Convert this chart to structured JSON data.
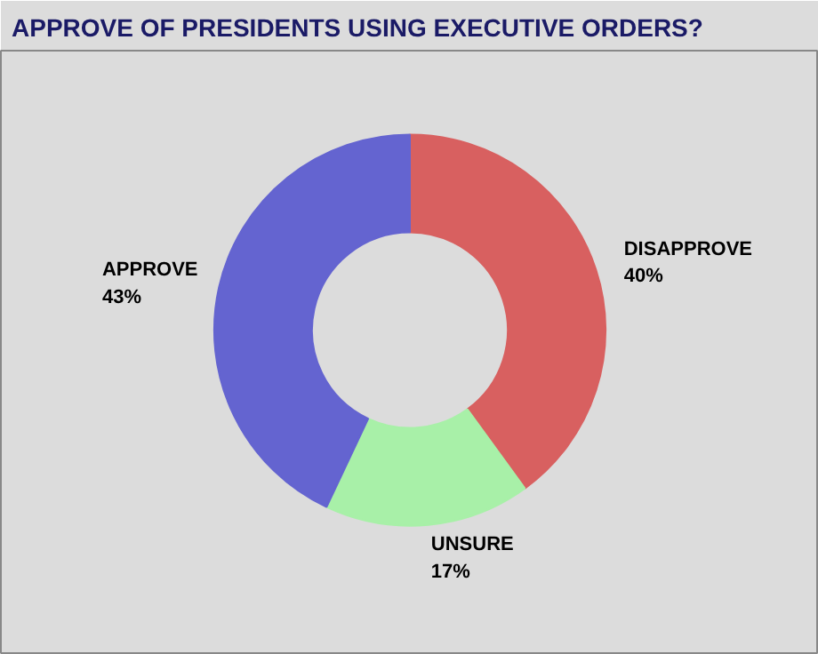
{
  "chart_data": {
    "type": "donut",
    "title": "APPROVE OF PRESIDENTS USING EXECUTIVE ORDERS?",
    "categories": [
      "DISAPPROVE",
      "UNSURE",
      "APPROVE"
    ],
    "values": [
      40,
      17,
      43
    ],
    "colors": [
      "#d86060",
      "#a8f0a8",
      "#6464d0"
    ],
    "value_labels": [
      "40%",
      "17%",
      "43%"
    ]
  }
}
